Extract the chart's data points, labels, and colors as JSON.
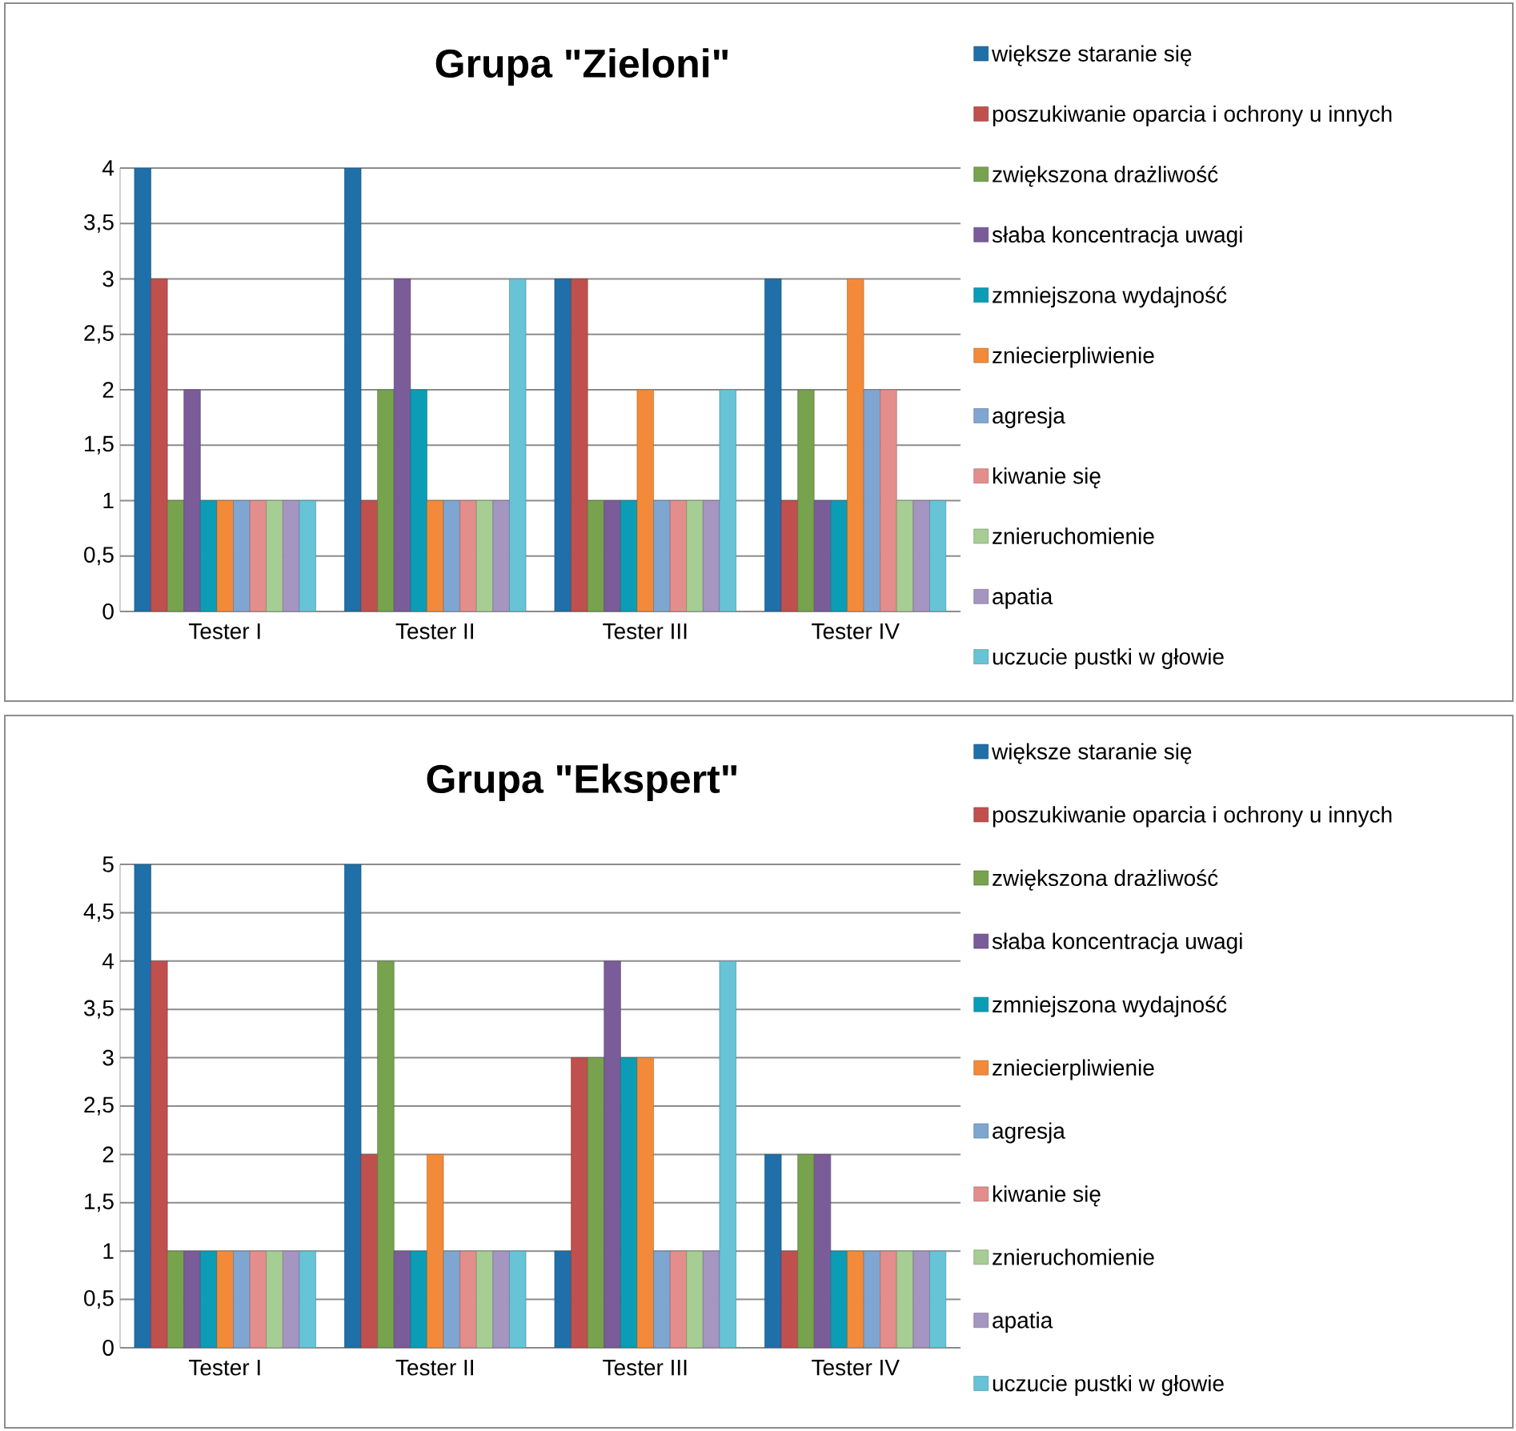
{
  "chart_data": [
    {
      "type": "bar",
      "title": "Grupa \"Zieloni\"",
      "categories": [
        "Tester I",
        "Tester II",
        "Tester III",
        "Tester IV"
      ],
      "ylim": [
        0,
        4
      ],
      "yticks": [
        0,
        {
          "value": 0.5,
          "label": "0,5"
        },
        1,
        {
          "value": 1.5,
          "label": "1,5"
        },
        2,
        {
          "value": 2.5,
          "label": "2,5"
        },
        3,
        {
          "value": 3.5,
          "label": "3,5"
        },
        4
      ],
      "grid": "y",
      "legend": "right",
      "series": [
        {
          "name": "większe staranie się",
          "color": "#1f6fa8",
          "values": [
            4,
            4,
            3,
            3
          ]
        },
        {
          "name": "poszukiwanie oparcia i ochrony u innych",
          "color": "#c0504d",
          "values": [
            3,
            1,
            3,
            1
          ]
        },
        {
          "name": "zwiększona drażliwość",
          "color": "#77a24e",
          "values": [
            1,
            2,
            1,
            2
          ]
        },
        {
          "name": "słaba koncentracja uwagi",
          "color": "#7a5c99",
          "values": [
            2,
            3,
            1,
            1
          ]
        },
        {
          "name": "zmniejszona wydajność",
          "color": "#0b9db5",
          "values": [
            1,
            2,
            1,
            1
          ]
        },
        {
          "name": "zniecierpliwienie",
          "color": "#f38a3a",
          "values": [
            1,
            1,
            2,
            3
          ]
        },
        {
          "name": "agresja",
          "color": "#7fa6d0",
          "values": [
            1,
            1,
            1,
            2
          ]
        },
        {
          "name": "kiwanie się",
          "color": "#e38d8c",
          "values": [
            1,
            1,
            1,
            2
          ]
        },
        {
          "name": "znieruchomienie",
          "color": "#a6cd93",
          "values": [
            1,
            1,
            1,
            1
          ]
        },
        {
          "name": "apatia",
          "color": "#a595c1",
          "values": [
            1,
            1,
            1,
            1
          ]
        },
        {
          "name": "uczucie pustki w głowie",
          "color": "#67c3d6",
          "values": [
            1,
            3,
            2,
            1
          ]
        }
      ]
    },
    {
      "type": "bar",
      "title": "Grupa \"Ekspert\"",
      "categories": [
        "Tester I",
        "Tester II",
        "Tester III",
        "Tester IV"
      ],
      "ylim": [
        0,
        5
      ],
      "yticks": [
        0,
        {
          "value": 0.5,
          "label": "0,5"
        },
        1,
        {
          "value": 1.5,
          "label": "1,5"
        },
        2,
        {
          "value": 2.5,
          "label": "2,5"
        },
        3,
        {
          "value": 3.5,
          "label": "3,5"
        },
        4,
        {
          "value": 4.5,
          "label": "4,5"
        },
        5
      ],
      "grid": "y",
      "legend": "right",
      "series": [
        {
          "name": "większe staranie się",
          "color": "#1f6fa8",
          "values": [
            5,
            5,
            1,
            2
          ]
        },
        {
          "name": "poszukiwanie oparcia i ochrony u innych",
          "color": "#c0504d",
          "values": [
            4,
            2,
            3,
            1
          ]
        },
        {
          "name": "zwiększona drażliwość",
          "color": "#77a24e",
          "values": [
            1,
            4,
            3,
            2
          ]
        },
        {
          "name": "słaba koncentracja uwagi",
          "color": "#7a5c99",
          "values": [
            1,
            1,
            4,
            2
          ]
        },
        {
          "name": "zmniejszona wydajność",
          "color": "#0b9db5",
          "values": [
            1,
            1,
            3,
            1
          ]
        },
        {
          "name": "zniecierpliwienie",
          "color": "#f38a3a",
          "values": [
            1,
            2,
            3,
            1
          ]
        },
        {
          "name": "agresja",
          "color": "#7fa6d0",
          "values": [
            1,
            1,
            1,
            1
          ]
        },
        {
          "name": "kiwanie się",
          "color": "#e38d8c",
          "values": [
            1,
            1,
            1,
            1
          ]
        },
        {
          "name": "znieruchomienie",
          "color": "#a6cd93",
          "values": [
            1,
            1,
            1,
            1
          ]
        },
        {
          "name": "apatia",
          "color": "#a595c1",
          "values": [
            1,
            1,
            1,
            1
          ]
        },
        {
          "name": "uczucie pustki w głowie",
          "color": "#67c3d6",
          "values": [
            1,
            1,
            4,
            1
          ]
        }
      ]
    }
  ]
}
